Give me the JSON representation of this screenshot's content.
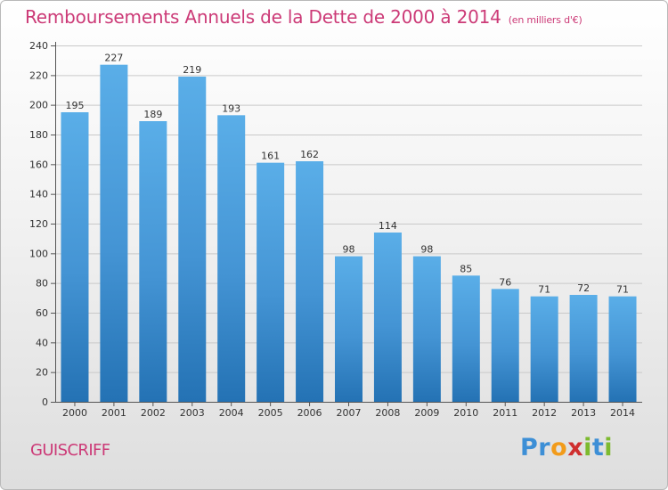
{
  "chart_data": {
    "type": "bar",
    "title": "Remboursements Annuels de la Dette de 2000 à 2014",
    "subtitle": "(en milliers d'€)",
    "categories": [
      "2000",
      "2001",
      "2002",
      "2003",
      "2004",
      "2005",
      "2006",
      "2007",
      "2008",
      "2009",
      "2010",
      "2011",
      "2012",
      "2013",
      "2014"
    ],
    "values": [
      195,
      227,
      189,
      219,
      193,
      161,
      162,
      98,
      114,
      98,
      85,
      76,
      71,
      72,
      71
    ],
    "ylim": [
      0,
      240
    ],
    "yticks": [
      0,
      20,
      40,
      60,
      80,
      100,
      120,
      140,
      160,
      180,
      200,
      220,
      240
    ],
    "grid": true,
    "bar_color": "#5aaee8",
    "bar_color_bottom": "#2472b4"
  },
  "footer": {
    "town": "GUISCRIFF",
    "logo_letters": [
      {
        "ch": "P",
        "color": "#3d8fd6"
      },
      {
        "ch": "r",
        "color": "#3d8fd6"
      },
      {
        "ch": "o",
        "color": "#f29b1a"
      },
      {
        "ch": "x",
        "color": "#cf2f2f"
      },
      {
        "ch": "i",
        "color": "#7dba2f"
      },
      {
        "ch": "t",
        "color": "#3d8fd6"
      },
      {
        "ch": "i",
        "color": "#7dba2f"
      }
    ]
  }
}
